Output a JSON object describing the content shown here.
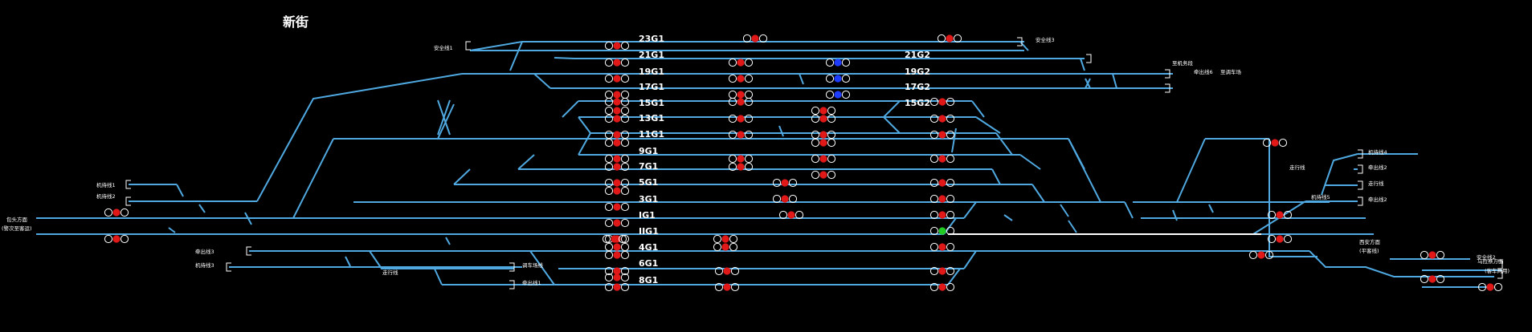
{
  "station": {
    "title": "新街"
  },
  "colors": {
    "track": "#4fa9e0",
    "occupied": "#ffffff",
    "red": "#e01818",
    "blue": "#1e3cff",
    "green": "#22cc22",
    "bg": "#000000"
  },
  "tracks": [
    {
      "name": "23G1"
    },
    {
      "name": "21G1"
    },
    {
      "name": "19G1"
    },
    {
      "name": "17G1"
    },
    {
      "name": "15G1"
    },
    {
      "name": "13G1"
    },
    {
      "name": "11G1"
    },
    {
      "name": "9G1"
    },
    {
      "name": "7G1"
    },
    {
      "name": "5G1"
    },
    {
      "name": "3G1"
    },
    {
      "name": "IG1"
    },
    {
      "name": "IIG1"
    },
    {
      "name": "4G1"
    },
    {
      "name": "6G1"
    },
    {
      "name": "8G1"
    }
  ],
  "tracks2": [
    {
      "name": "21G2"
    },
    {
      "name": "19G2"
    },
    {
      "name": "17G2"
    },
    {
      "name": "15G2"
    }
  ],
  "labels": [
    {
      "text": "安全线1"
    },
    {
      "text": "安全线3"
    },
    {
      "text": "牵出线6"
    },
    {
      "text": "至机务段"
    },
    {
      "text": "至调车场"
    },
    {
      "text": "机待线1"
    },
    {
      "text": "机待线2"
    },
    {
      "text": "包头方面"
    },
    {
      "text": "(警次至客运)"
    },
    {
      "text": "牵出线3"
    },
    {
      "text": "机待线3"
    },
    {
      "text": "走行线"
    },
    {
      "text": "调车场线"
    },
    {
      "text": "牵出线1"
    },
    {
      "text": "机待线4"
    },
    {
      "text": "走行线"
    },
    {
      "text": "牵出线2"
    },
    {
      "text": "机待线5"
    },
    {
      "text": "走行线"
    },
    {
      "text": "牵出线2"
    },
    {
      "text": "西安方面"
    },
    {
      "text": "(平客线)"
    },
    {
      "text": "安全线2"
    },
    {
      "text": "乌拉察方面"
    },
    {
      "text": "(客车两用)"
    }
  ]
}
